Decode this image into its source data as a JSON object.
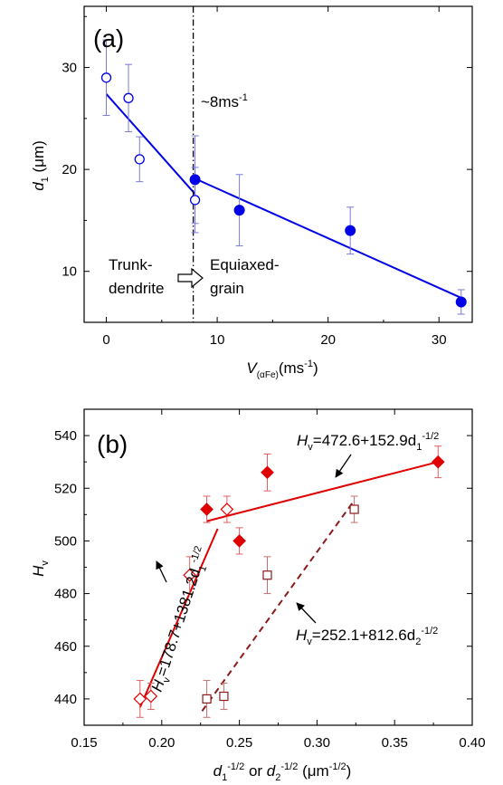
{
  "chart_data": [
    {
      "panel": "(a)",
      "type": "scatter",
      "xlim": [
        -2,
        33
      ],
      "ylim": [
        5,
        36
      ],
      "xticks": [
        "0",
        "10",
        "20",
        "30"
      ],
      "yticks": [
        "10",
        "20",
        "30"
      ],
      "xlabel": {
        "main": "V",
        "sub": "(αFe)",
        "unit": "(ms",
        "sup": "-1",
        "close": ")"
      },
      "ylabel": {
        "main": "d",
        "sub": "1",
        "unit": " (μm)"
      },
      "color": "#0000e6",
      "open_series": {
        "x": [
          0,
          2,
          3,
          8
        ],
        "y": [
          29,
          27,
          21,
          17
        ],
        "err": [
          3.7,
          3.3,
          2.2,
          3.2
        ]
      },
      "filled_series": {
        "x": [
          8,
          12,
          22,
          32
        ],
        "y": [
          19,
          16,
          14,
          7
        ],
        "err": [
          4.3,
          3.5,
          2.3,
          1.2
        ]
      },
      "fit_lines": [
        {
          "x": [
            0,
            8
          ],
          "y": [
            27.4,
            17.6
          ]
        },
        {
          "x": [
            8,
            32
          ],
          "y": [
            19.1,
            7.4
          ]
        }
      ],
      "transition_x": 8,
      "annotations": {
        "speed": "~8ms",
        "speed_sup": "-1",
        "left_1": "Trunk-",
        "left_2": "dendrite",
        "right_1": "Equiaxed-",
        "right_2": "grain"
      }
    },
    {
      "panel": "(b)",
      "type": "scatter",
      "xlim": [
        0.15,
        0.4
      ],
      "ylim": [
        430,
        550
      ],
      "xticks": [
        "0.15",
        "0.20",
        "0.25",
        "0.30",
        "0.35",
        "0.40"
      ],
      "yticks": [
        "440",
        "460",
        "480",
        "500",
        "520",
        "540"
      ],
      "xlabel": {
        "a": "d",
        "a_sub": "1",
        "a_sup": "-1/2",
        "or": " or ",
        "b": "d",
        "b_sub": "2",
        "b_sup": "-1/2",
        "unit": " (μm",
        "unit_sup": "-1/2",
        "close": ")"
      },
      "ylabel": {
        "main": "H",
        "sub": "v"
      },
      "color": "#e00000",
      "dark_color": "#8b1a1a",
      "open_diamond": {
        "x": [
          0.186,
          0.193,
          0.218,
          0.242
        ],
        "y": [
          440,
          441,
          487,
          512
        ],
        "err": [
          7,
          5,
          7,
          5
        ]
      },
      "filled_diamond": {
        "x": [
          0.229,
          0.25,
          0.268,
          0.378
        ],
        "y": [
          512,
          500,
          526,
          530
        ],
        "err": [
          5,
          5,
          7,
          6
        ]
      },
      "open_square": {
        "x": [
          0.229,
          0.24,
          0.268,
          0.324
        ],
        "y": [
          440,
          441,
          487,
          512
        ],
        "err": [
          7,
          5,
          7,
          5
        ]
      },
      "fit_lines": [
        {
          "x": [
            0.186,
            0.236
          ],
          "y": [
            436.8,
            504.6
          ],
          "style": "solid"
        },
        {
          "x": [
            0.229,
            0.378
          ],
          "y": [
            507.5,
            530.0
          ],
          "style": "solid"
        },
        {
          "x": [
            0.226,
            0.324
          ],
          "y": [
            435.4,
            515.4
          ],
          "style": "dashed"
        }
      ],
      "annotations": {
        "top": {
          "H": "H",
          "sub": "v",
          "rest": "=472.6+152.9d",
          "dsub": "1",
          "sup": "-1/2"
        },
        "rotated": {
          "H": "H",
          "sub": "v",
          "rest": "=178.7+1381.2d",
          "dsub": "1",
          "sup": "-1/2"
        },
        "bottom": {
          "H": "H",
          "sub": "v",
          "rest": "=252.1+812.6d",
          "dsub": "2",
          "sup": "-1/2"
        }
      }
    }
  ]
}
